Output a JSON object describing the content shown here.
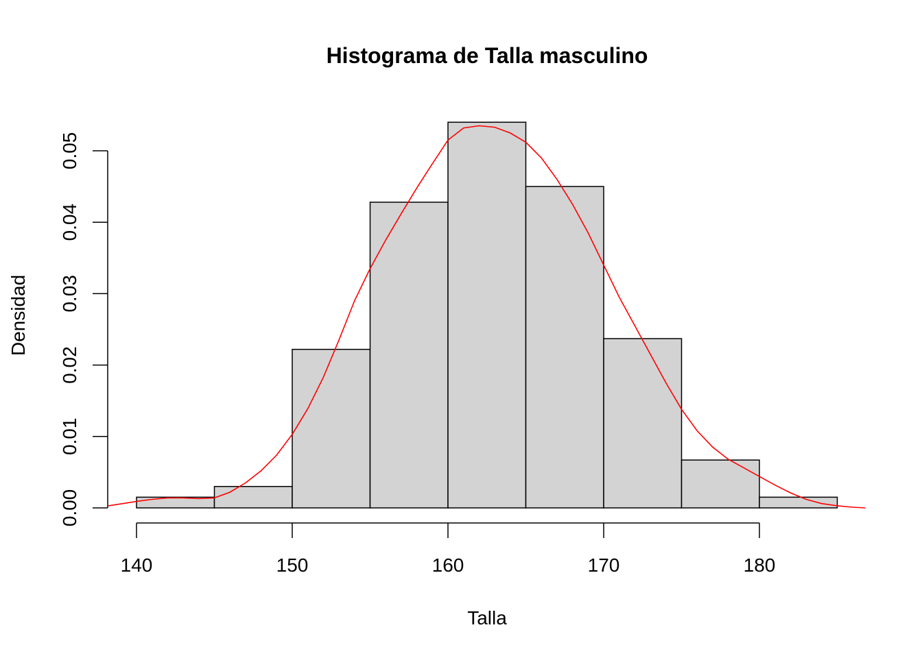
{
  "chart_data": {
    "type": "bar",
    "subtype": "histogram",
    "title": "Histograma de Talla masculino",
    "xlabel": "Talla",
    "ylabel": "Densidad",
    "xlim": [
      140,
      185
    ],
    "ylim": [
      0,
      0.054
    ],
    "bin_edges": [
      140,
      145,
      150,
      155,
      160,
      165,
      170,
      175,
      180,
      185
    ],
    "values": [
      0.0015,
      0.003,
      0.0222,
      0.0428,
      0.054,
      0.045,
      0.0237,
      0.0067,
      0.0015
    ],
    "x_ticks": [
      140,
      150,
      160,
      170,
      180
    ],
    "x_tick_labels": [
      "140",
      "150",
      "160",
      "170",
      "180"
    ],
    "y_ticks": [
      0,
      0.01,
      0.02,
      0.03,
      0.04,
      0.05
    ],
    "y_tick_labels": [
      "0.00",
      "0.01",
      "0.02",
      "0.03",
      "0.04",
      "0.05"
    ],
    "bar_color": "#d3d3d3",
    "density_line": {
      "color": "#ff0000",
      "x": [
        138.2,
        140,
        141,
        142,
        143,
        144,
        145,
        146,
        147,
        148,
        149,
        150,
        151,
        152,
        153,
        154,
        155,
        156,
        157,
        158,
        159,
        160,
        161,
        162,
        163,
        164,
        165,
        166,
        167,
        168,
        169,
        170,
        171,
        172,
        173,
        174,
        175,
        176,
        177,
        178,
        179,
        180,
        181,
        182,
        183,
        184,
        185,
        186,
        186.8
      ],
      "y": [
        0.0003,
        0.0009,
        0.0012,
        0.0014,
        0.0014,
        0.0013,
        0.0014,
        0.0022,
        0.0035,
        0.0052,
        0.0074,
        0.0103,
        0.0139,
        0.0183,
        0.0235,
        0.029,
        0.0335,
        0.0375,
        0.0412,
        0.0448,
        0.0482,
        0.0515,
        0.0532,
        0.0535,
        0.0533,
        0.0525,
        0.0512,
        0.049,
        0.046,
        0.0425,
        0.0385,
        0.034,
        0.0295,
        0.0255,
        0.0215,
        0.0175,
        0.0138,
        0.0108,
        0.0085,
        0.0068,
        0.0056,
        0.0044,
        0.0032,
        0.0021,
        0.0012,
        0.0006,
        0.0003,
        0.0001,
        0.0
      ]
    }
  }
}
